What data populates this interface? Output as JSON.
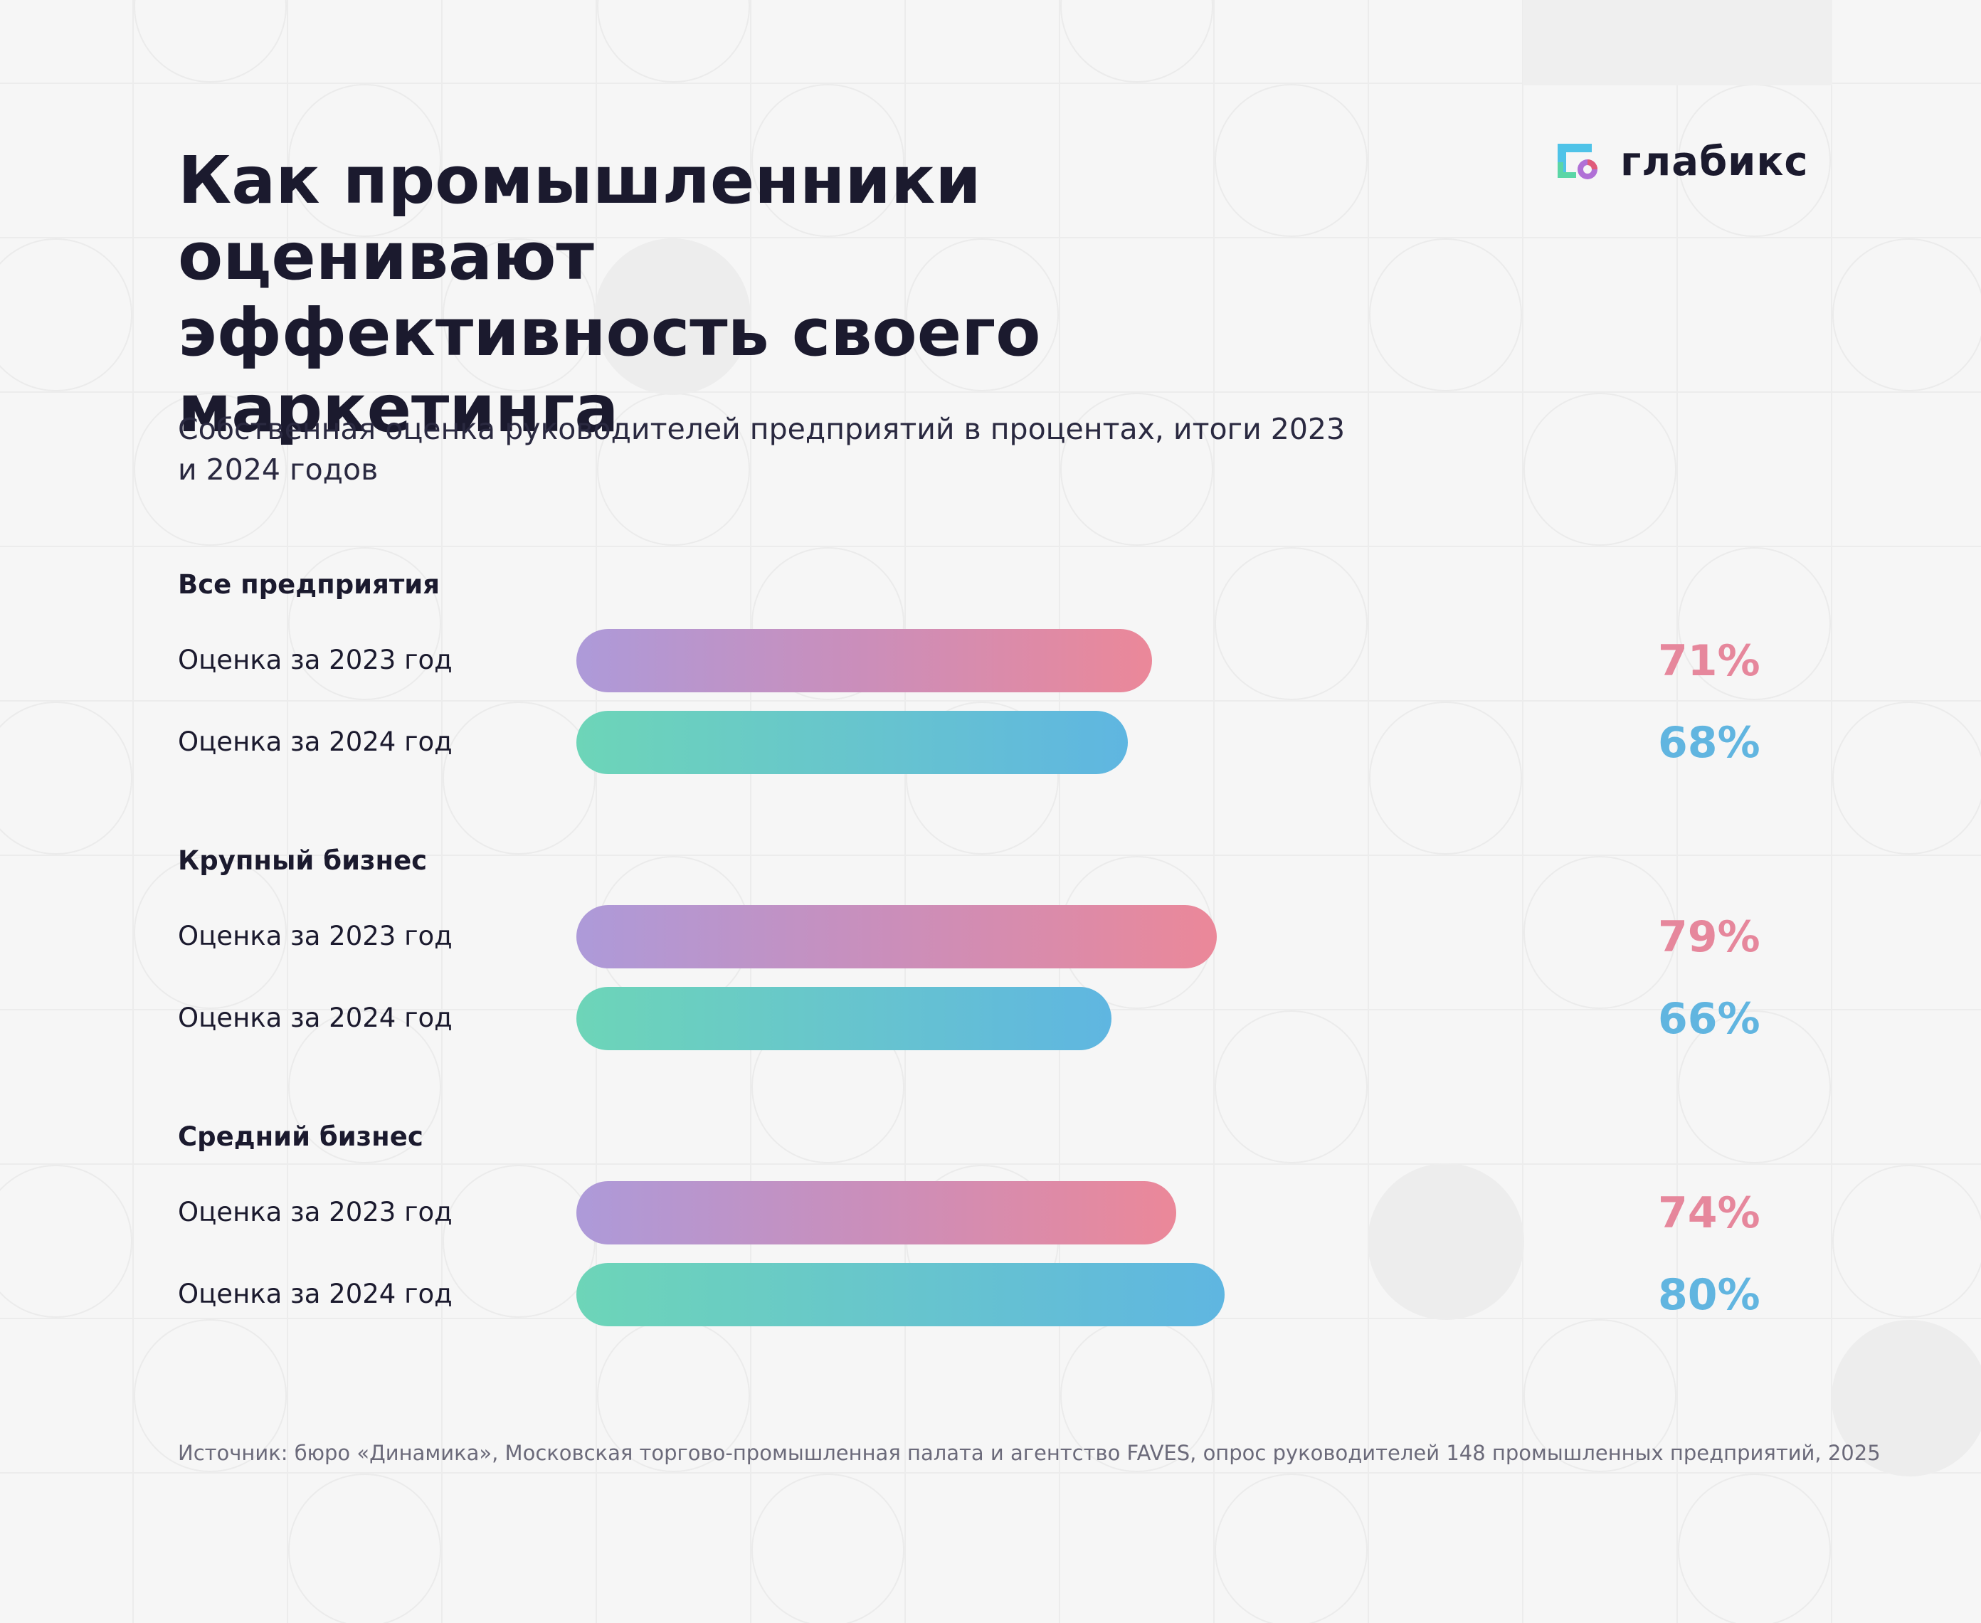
{
  "title_lines": [
    "Как промышленники оценивают",
    "эффективность своего",
    "маркетинга"
  ],
  "subtitle_lines": [
    "Собственная оценка руководителей предприятий в процентах, итоги 2023",
    "и 2024 годов"
  ],
  "logo": {
    "text": "глабикс",
    "icon": "glabiks-logo-icon",
    "colors": [
      "#4fc3e8",
      "#5bd6a6",
      "#b070d6",
      "#e05a7a"
    ]
  },
  "colors": {
    "accent_2023": "#e6879c",
    "accent_2024": "#61b5e0",
    "text": "#1b1a2e"
  },
  "chart_data": {
    "type": "bar",
    "orientation": "horizontal",
    "unit": "%",
    "xlim": [
      0,
      100
    ],
    "groups": [
      {
        "name": "Все предприятия",
        "rows": [
          {
            "label": "Оценка за 2023 год",
            "year": "2023",
            "value": 71,
            "display": "71%"
          },
          {
            "label": "Оценка за 2024 год",
            "year": "2024",
            "value": 68,
            "display": "68%"
          }
        ]
      },
      {
        "name": "Крупный бизнес",
        "rows": [
          {
            "label": "Оценка за 2023 год",
            "year": "2023",
            "value": 79,
            "display": "79%"
          },
          {
            "label": "Оценка за 2024 год",
            "year": "2024",
            "value": 66,
            "display": "66%"
          }
        ]
      },
      {
        "name": "Средний бизнес",
        "rows": [
          {
            "label": "Оценка за 2023 год",
            "year": "2023",
            "value": 74,
            "display": "74%"
          },
          {
            "label": "Оценка за 2024 год",
            "year": "2024",
            "value": 80,
            "display": "80%"
          }
        ]
      }
    ]
  },
  "source": "Источник: бюро «Динамика», Московская торгово-промышленная палата и агентство FAVES, опрос руководителей 148 промышленных предприятий, 2025"
}
